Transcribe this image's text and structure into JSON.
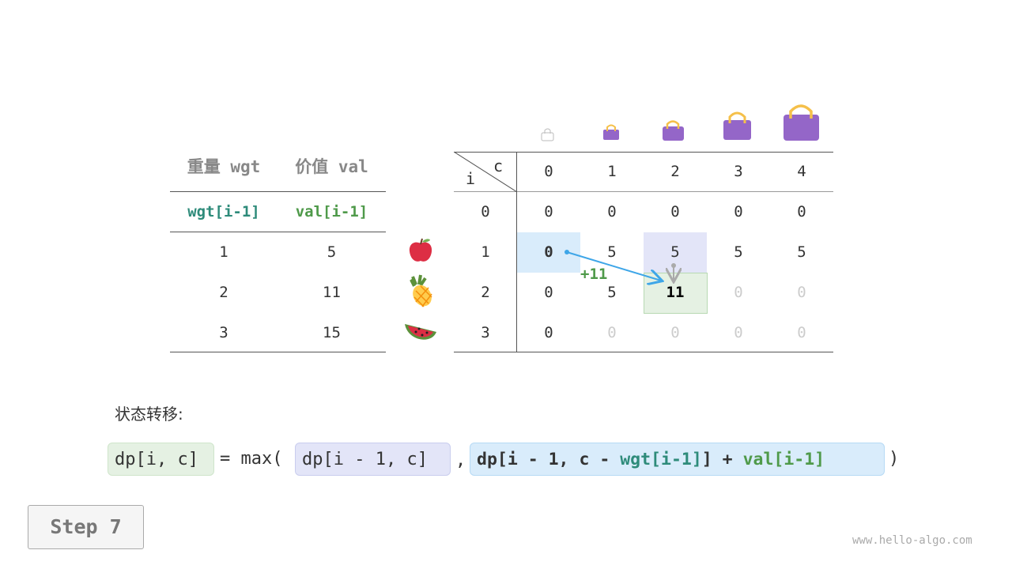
{
  "items_table": {
    "headers": [
      "重量 wgt",
      "价值 val"
    ],
    "subheaders": [
      "wgt[i-1]",
      "val[i-1]"
    ],
    "rows": [
      {
        "wgt": "1",
        "val": "5",
        "icon": "apple-icon"
      },
      {
        "wgt": "2",
        "val": "11",
        "icon": "pineapple-icon"
      },
      {
        "wgt": "3",
        "val": "15",
        "icon": "watermelon-icon"
      }
    ]
  },
  "dp_table": {
    "corner_c": "c",
    "corner_i": "i",
    "col_headers": [
      "0",
      "1",
      "2",
      "3",
      "4"
    ],
    "row_headers": [
      "0",
      "1",
      "2",
      "3"
    ],
    "rows": [
      [
        "0",
        "0",
        "0",
        "0",
        "0"
      ],
      [
        "0",
        "5",
        "5",
        "5",
        "5"
      ],
      [
        "0",
        "5",
        "11",
        "0",
        "0"
      ],
      [
        "0",
        "0",
        "0",
        "0",
        "0"
      ]
    ],
    "computed": [
      [
        true,
        true,
        true,
        true,
        true
      ],
      [
        true,
        true,
        true,
        true,
        true
      ],
      [
        true,
        true,
        true,
        false,
        false
      ],
      [
        true,
        false,
        false,
        false,
        false
      ]
    ],
    "arrow_label": "+11"
  },
  "colors": {
    "teal": "#2e8b7a",
    "green": "#4f9a4a",
    "blue_arrow": "#3ea6e8",
    "bag": "#9466c8",
    "handle": "#f5c04a"
  },
  "formula": {
    "label": "状态转移:",
    "lhs": "dp[i, c]",
    "eq": "= max(",
    "opt1": "dp[i - 1, c]",
    "comma": ",",
    "opt2_a": "dp[i - 1, c - ",
    "opt2_wgt": "wgt[i-1]",
    "opt2_b": "] + ",
    "opt2_val": "val[i-1]",
    "close": ")"
  },
  "step_button": "Step 7",
  "watermark": "www.hello-algo.com"
}
